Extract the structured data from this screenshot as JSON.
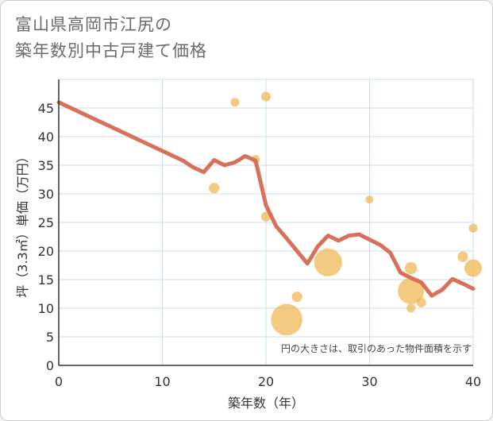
{
  "title": {
    "line1": "富山県高岡市江尻の",
    "line2": "築年数別中古戸建て価格"
  },
  "chart_data": {
    "type": "scatter",
    "xlabel": "築年数（年）",
    "ylabel": "坪（3.3㎡）単価（万円）",
    "xlim": [
      0,
      40
    ],
    "ylim": [
      0,
      50
    ],
    "xticks": [
      0,
      10,
      20,
      30,
      40
    ],
    "yticks": [
      0,
      5,
      10,
      15,
      20,
      25,
      30,
      35,
      40,
      45
    ],
    "grid": true,
    "note": "円の大きさは、取引のあった物件面積を示す",
    "colors": {
      "line": "#d9705a",
      "bubble": "#f0b550",
      "grid": "#c8dceb",
      "axis": "#333333"
    },
    "trend_line": {
      "x": [
        0,
        12,
        13,
        14,
        15,
        16,
        17,
        18,
        19,
        20,
        21,
        22,
        23,
        24,
        25,
        26,
        27,
        28,
        29,
        30,
        31,
        32,
        33,
        34,
        35,
        36,
        37,
        38,
        39,
        40
      ],
      "y": [
        46,
        35.8,
        34.6,
        33.8,
        35.9,
        35,
        35.5,
        36.6,
        35.8,
        28,
        24.3,
        22.2,
        20,
        17.8,
        20.8,
        22.7,
        21.8,
        22.7,
        22.9,
        22,
        21.1,
        19.7,
        16.2,
        15.3,
        14.5,
        12.2,
        13.2,
        15.1,
        14.3,
        13.4
      ]
    },
    "bubbles": [
      {
        "x": 15,
        "y": 31,
        "size": 1.2
      },
      {
        "x": 17,
        "y": 46,
        "size": 1.0
      },
      {
        "x": 19,
        "y": 36,
        "size": 1.0
      },
      {
        "x": 20,
        "y": 47,
        "size": 1.1
      },
      {
        "x": 20,
        "y": 26,
        "size": 1.1
      },
      {
        "x": 22,
        "y": 8,
        "size": 3.6
      },
      {
        "x": 23,
        "y": 12,
        "size": 1.2
      },
      {
        "x": 26,
        "y": 18,
        "size": 3.2
      },
      {
        "x": 30,
        "y": 29,
        "size": 0.9
      },
      {
        "x": 34,
        "y": 17,
        "size": 1.4
      },
      {
        "x": 34,
        "y": 13,
        "size": 3.0
      },
      {
        "x": 34,
        "y": 10,
        "size": 1.0
      },
      {
        "x": 35,
        "y": 11,
        "size": 1.1
      },
      {
        "x": 39,
        "y": 19,
        "size": 1.2
      },
      {
        "x": 40,
        "y": 24,
        "size": 1.0
      },
      {
        "x": 40,
        "y": 17,
        "size": 2.0
      }
    ]
  }
}
